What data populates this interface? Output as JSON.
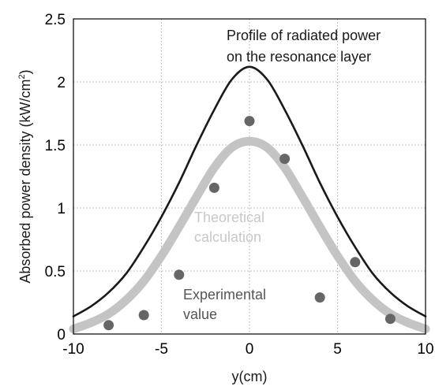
{
  "chart_data": {
    "type": "scatter",
    "xlabel": "y(cm)",
    "ylabel_pre": "Absorbed power density (kW/cm",
    "ylabel_sup": "2",
    "ylabel_post": ")",
    "xlim": [
      -10,
      10
    ],
    "ylim": [
      0,
      2.5
    ],
    "xticks": [
      -10,
      -5,
      0,
      5,
      10
    ],
    "xtick_labels": [
      "-10",
      "-5",
      "0",
      "5",
      "10"
    ],
    "yticks": [
      0,
      0.5,
      1,
      1.5,
      2,
      2.5
    ],
    "ytick_labels": [
      "0",
      "0.5",
      "1",
      "1.5",
      "2",
      "2.5"
    ],
    "grid": true,
    "series": [
      {
        "kind": "line",
        "color": "#1a1a1a",
        "x": [
          -10,
          -9,
          -8,
          -7,
          -6,
          -5,
          -4,
          -3,
          -2,
          -1,
          0,
          1,
          2,
          3,
          4,
          5,
          6,
          7,
          8,
          9,
          10
        ],
        "values": [
          0.14,
          0.22,
          0.33,
          0.48,
          0.69,
          0.93,
          1.2,
          1.5,
          1.78,
          2.02,
          2.12,
          2.02,
          1.78,
          1.5,
          1.2,
          0.93,
          0.69,
          0.48,
          0.33,
          0.22,
          0.14
        ]
      },
      {
        "kind": "line",
        "color": "#c4c4c4",
        "x": [
          -10,
          -9,
          -8,
          -7,
          -6,
          -5,
          -4,
          -3,
          -2,
          -1,
          0,
          1,
          2,
          3,
          4,
          5,
          6,
          7,
          8,
          9,
          10
        ],
        "values": [
          0.04,
          0.09,
          0.16,
          0.27,
          0.42,
          0.62,
          0.85,
          1.09,
          1.32,
          1.48,
          1.53,
          1.48,
          1.32,
          1.09,
          0.85,
          0.62,
          0.42,
          0.27,
          0.16,
          0.09,
          0.04
        ]
      },
      {
        "kind": "scatter",
        "color": "#666666",
        "x": [
          -8,
          -6,
          -4,
          -2,
          0,
          2,
          4,
          6,
          8
        ],
        "values": [
          0.07,
          0.15,
          0.47,
          1.16,
          1.69,
          1.39,
          0.29,
          0.57,
          0.12
        ]
      }
    ],
    "annotations": [
      {
        "text": "Profile of radiated power",
        "color": "#1a1a1a"
      },
      {
        "text_pre": "on the resonance layer",
        "color": "#1a1a1a"
      },
      {
        "text": "Theoretical",
        "color": "#c8c8c8"
      },
      {
        "text": "calculation",
        "color": "#c8c8c8"
      },
      {
        "text": "Experimental",
        "color": "#555555"
      },
      {
        "text": "value",
        "color": "#555555"
      }
    ]
  }
}
